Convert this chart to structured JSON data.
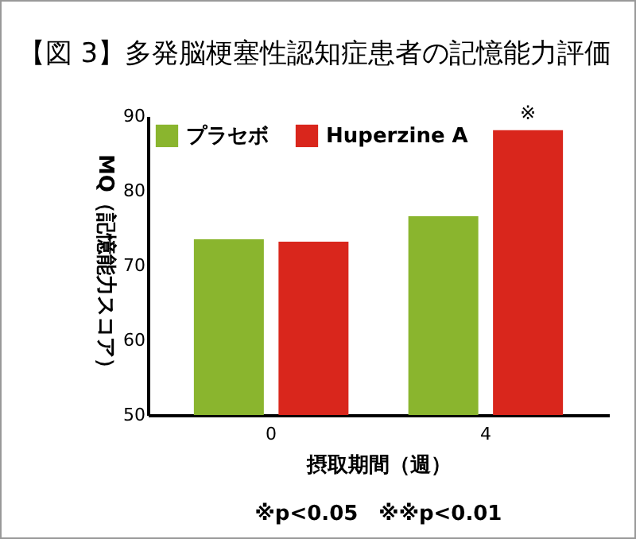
{
  "chart_data": {
    "type": "bar",
    "title": "【図 3】多発脳梗塞性認知症患者の記憶能力評価",
    "xlabel": "摂取期間（週）",
    "ylabel": "MQ（記憶能力スコア）",
    "categories": [
      "0",
      "4"
    ],
    "series": [
      {
        "name": "プラセボ",
        "color": "#8ab52e",
        "values": [
          73.5,
          76.6
        ]
      },
      {
        "name": "Huperzine A",
        "color": "#d9261c",
        "values": [
          73.2,
          88.1
        ]
      }
    ],
    "ylim": [
      50,
      90
    ],
    "yticks": [
      50,
      60,
      70,
      80,
      90
    ],
    "grid": false,
    "legend": "top left",
    "annotations": [
      {
        "text": "※",
        "x": "4",
        "y": 88.1
      },
      "※p<0.05　※※p<0.01"
    ]
  }
}
